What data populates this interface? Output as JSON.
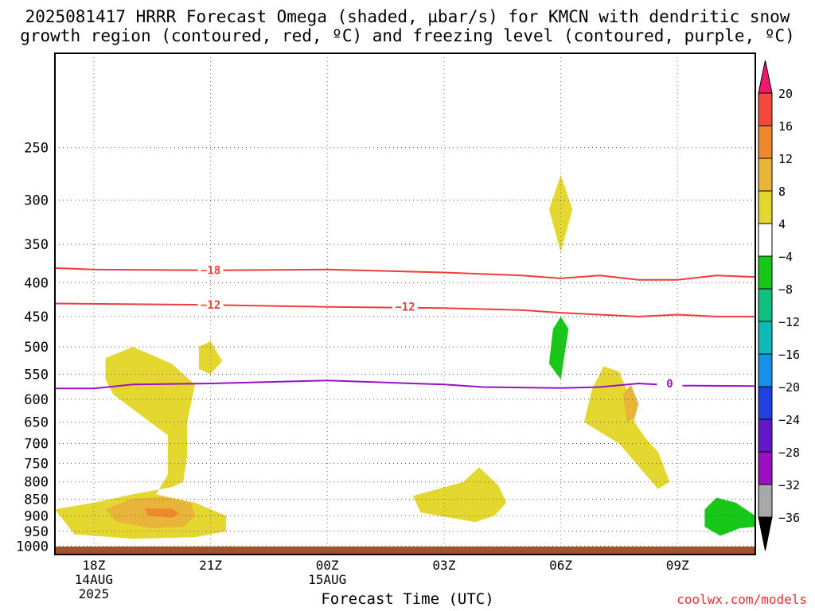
{
  "title": {
    "line1": "2025081417 HRRR Forecast Omega (shaded, µbar/s) for KMCN with dendritic snow",
    "line2": "growth region (contoured, red, ºC) and freezing level (contoured, purple, ºC)"
  },
  "credit": "coolwx.com/models",
  "chart_data": {
    "type": "contour",
    "title": "2025081417 HRRR Forecast Omega (shaded, µbar/s) for KMCN with dendritic snow growth region (contoured, red, ºC) and freezing level (contoured, purple, ºC)",
    "xlabel": "Forecast Time (UTC)",
    "ylabel": "",
    "x_ticks": [
      {
        "label": "18Z",
        "sub": [
          "14AUG",
          "2025"
        ],
        "hour": 0
      },
      {
        "label": "21Z",
        "sub": [],
        "hour": 3
      },
      {
        "label": "00Z",
        "sub": [
          "15AUG"
        ],
        "hour": 6
      },
      {
        "label": "03Z",
        "sub": [],
        "hour": 9
      },
      {
        "label": "06Z",
        "sub": [],
        "hour": 12
      },
      {
        "label": "09Z",
        "sub": [],
        "hour": 15
      }
    ],
    "xlim": [
      -1,
      17
    ],
    "y_ticks": [
      250,
      300,
      350,
      400,
      450,
      500,
      550,
      600,
      650,
      700,
      750,
      800,
      850,
      900,
      950,
      1000
    ],
    "ylim_hPa": [
      1030,
      180
    ],
    "grid": true,
    "colorbar": {
      "levels": [
        "20",
        "16",
        "12",
        "8",
        "4",
        "−4",
        "−8",
        "−12",
        "−16",
        "−20",
        "−24",
        "−28",
        "−32",
        "−36"
      ],
      "colors": [
        "#ee1a6a",
        "#f44a3c",
        "#ee8a2c",
        "#e8b43a",
        "#e4d830",
        "#ffffff",
        "#18c818",
        "#10c080",
        "#10b8b8",
        "#1890e8",
        "#2040e0",
        "#6018c8",
        "#9c10c0",
        "#a8a8a8",
        "#000000"
      ]
    },
    "contours": [
      {
        "name": "-18",
        "color": "#f03c3c",
        "points": [
          [
            -1,
            380
          ],
          [
            0,
            382
          ],
          [
            3,
            383
          ],
          [
            6,
            382
          ],
          [
            9,
            386
          ],
          [
            11,
            390
          ],
          [
            12,
            394
          ],
          [
            13,
            390
          ],
          [
            14,
            396
          ],
          [
            15,
            396
          ],
          [
            16,
            390
          ],
          [
            17,
            392
          ]
        ],
        "labels": [
          {
            "text": "−18",
            "x": 3,
            "y": 383
          }
        ]
      },
      {
        "name": "-12",
        "color": "#f03c3c",
        "points": [
          [
            -1,
            430
          ],
          [
            3,
            432
          ],
          [
            6,
            435
          ],
          [
            9,
            437
          ],
          [
            11,
            440
          ],
          [
            12,
            444
          ],
          [
            13,
            447
          ],
          [
            14,
            450
          ],
          [
            15,
            447
          ],
          [
            16,
            450
          ],
          [
            17,
            450
          ]
        ],
        "labels": [
          {
            "text": "−12",
            "x": 3,
            "y": 432
          },
          {
            "text": "−12",
            "x": 8,
            "y": 435
          }
        ]
      },
      {
        "name": "0",
        "color": "#9a10c8",
        "points": [
          [
            -1,
            578
          ],
          [
            0,
            578
          ],
          [
            1,
            570
          ],
          [
            3,
            568
          ],
          [
            6,
            562
          ],
          [
            9,
            570
          ],
          [
            10,
            575
          ],
          [
            12,
            577
          ],
          [
            13,
            575
          ],
          [
            14,
            568
          ],
          [
            15,
            572
          ],
          [
            17,
            573
          ]
        ],
        "labels": [
          {
            "text": "0",
            "x": 14.8,
            "y": 568
          }
        ]
      }
    ],
    "shaded_regions": [
      {
        "level": "4 to 8",
        "color": "#e4d830",
        "pts": [
          [
            -1,
            880
          ],
          [
            0,
            860
          ],
          [
            1,
            835
          ],
          [
            2,
            815
          ],
          [
            2.3,
            800
          ],
          [
            2.4,
            730
          ],
          [
            2.4,
            650
          ],
          [
            2.6,
            570
          ],
          [
            2,
            530
          ],
          [
            1,
            500
          ],
          [
            0.3,
            520
          ],
          [
            0.3,
            560
          ],
          [
            0.5,
            590
          ],
          [
            1.3,
            640
          ],
          [
            1.9,
            680
          ],
          [
            1.9,
            780
          ],
          [
            1.6,
            835
          ],
          [
            2.6,
            860
          ],
          [
            3.4,
            900
          ],
          [
            3.4,
            950
          ],
          [
            2.6,
            970
          ],
          [
            1,
            975
          ],
          [
            -0.5,
            960
          ]
        ]
      },
      {
        "level": "8 to 12",
        "color": "#e8b43a",
        "pts": [
          [
            0.3,
            880
          ],
          [
            1,
            848
          ],
          [
            1.8,
            843
          ],
          [
            2.5,
            860
          ],
          [
            2.6,
            900
          ],
          [
            2.3,
            935
          ],
          [
            1.5,
            940
          ],
          [
            0.6,
            920
          ]
        ]
      },
      {
        "level": "12 to 16",
        "color": "#ee8a2c",
        "pts": [
          [
            1.3,
            878
          ],
          [
            2,
            878
          ],
          [
            2.2,
            893
          ],
          [
            2,
            906
          ],
          [
            1.4,
            900
          ]
        ]
      },
      {
        "level": "4 to 8",
        "color": "#e4d830",
        "pts": [
          [
            2.7,
            500
          ],
          [
            3,
            490
          ],
          [
            3.3,
            525
          ],
          [
            3,
            550
          ],
          [
            2.7,
            540
          ]
        ]
      },
      {
        "level": "4 to 8",
        "color": "#e4d830",
        "pts": [
          [
            12,
            275
          ],
          [
            12.3,
            310
          ],
          [
            12,
            360
          ],
          [
            11.7,
            310
          ]
        ]
      },
      {
        "level": "4 to 8",
        "color": "#e4d830",
        "pts": [
          [
            8.2,
            840
          ],
          [
            9.5,
            800
          ],
          [
            9.9,
            760
          ],
          [
            10.4,
            810
          ],
          [
            10.6,
            860
          ],
          [
            10.3,
            900
          ],
          [
            9.8,
            920
          ],
          [
            8.4,
            890
          ]
        ]
      },
      {
        "level": "4 to 8",
        "color": "#e4d830",
        "pts": [
          [
            12.8,
            580
          ],
          [
            13.1,
            535
          ],
          [
            13.5,
            545
          ],
          [
            13.9,
            620
          ],
          [
            13.9,
            650
          ],
          [
            14.2,
            690
          ],
          [
            14.5,
            720
          ],
          [
            14.8,
            800
          ],
          [
            14.5,
            820
          ],
          [
            13.5,
            700
          ],
          [
            12.6,
            650
          ]
        ]
      },
      {
        "level": "8 to 12",
        "color": "#e8b43a",
        "pts": [
          [
            13.6,
            590
          ],
          [
            13.8,
            570
          ],
          [
            14,
            610
          ],
          [
            13.9,
            640
          ],
          [
            13.7,
            650
          ]
        ]
      },
      {
        "level": "-8 to -4",
        "color": "#18c818",
        "pts": [
          [
            11.8,
            470
          ],
          [
            12,
            450
          ],
          [
            12.2,
            470
          ],
          [
            12,
            560
          ],
          [
            11.7,
            530
          ]
        ]
      },
      {
        "level": "-8 to -4",
        "color": "#18c818",
        "pts": [
          [
            15.7,
            880
          ],
          [
            16,
            845
          ],
          [
            16.5,
            860
          ],
          [
            17,
            900
          ],
          [
            17,
            935
          ],
          [
            16.6,
            940
          ],
          [
            16.1,
            965
          ],
          [
            15.7,
            935
          ]
        ]
      }
    ]
  }
}
